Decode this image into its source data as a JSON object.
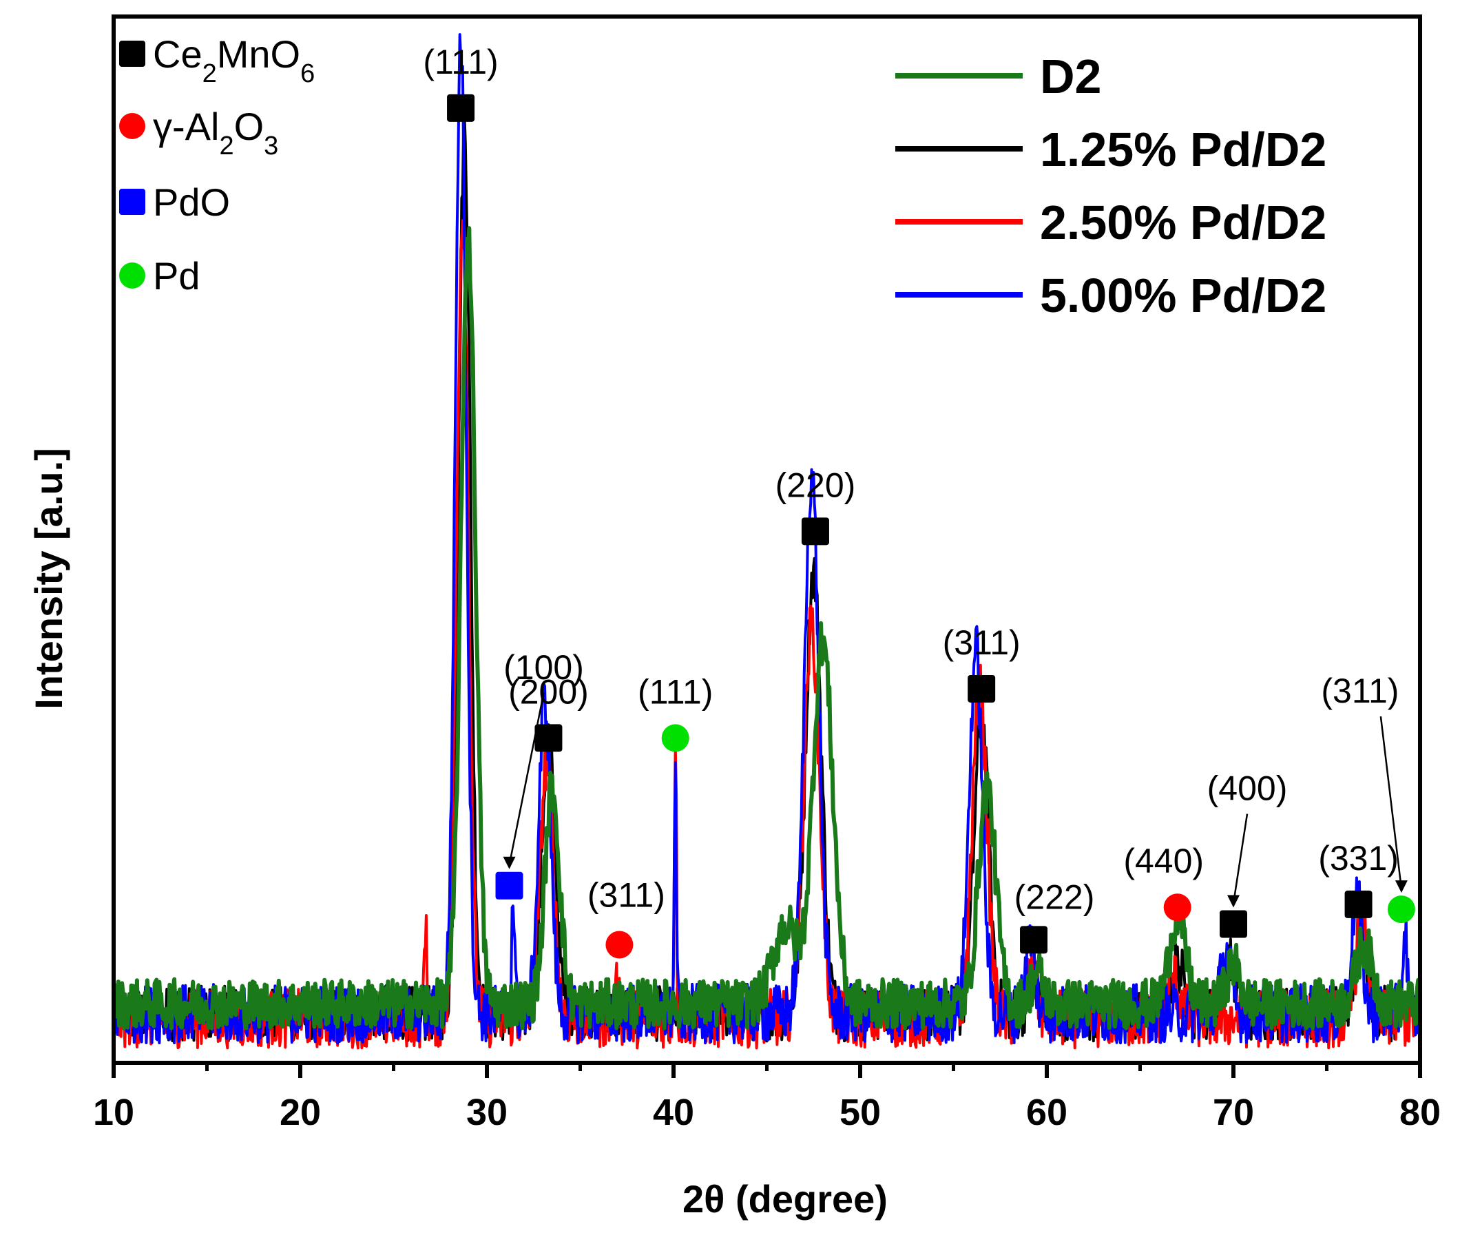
{
  "chart_data": {
    "type": "line",
    "xlabel": "2θ (degree)",
    "ylabel": "Intensity [a.u.]",
    "xlim": [
      10,
      80
    ],
    "ylim": [
      0,
      100
    ],
    "x_ticks": [
      10,
      20,
      30,
      40,
      50,
      60,
      70,
      80
    ],
    "x_minor_step": 5,
    "legend_position": "top-right",
    "series": [
      {
        "name": "D2",
        "color": "#1a7a1a",
        "peaks": [
          {
            "x": 29.0,
            "h": 78,
            "w": 0.55
          },
          {
            "x": 33.5,
            "h": 22,
            "w": 0.55
          },
          {
            "x": 46.0,
            "h": 8,
            "w": 0.9
          },
          {
            "x": 48.0,
            "h": 37,
            "w": 0.75
          },
          {
            "x": 56.8,
            "h": 22,
            "w": 0.65
          },
          {
            "x": 59.5,
            "h": 3,
            "w": 0.5
          },
          {
            "x": 67.0,
            "h": 9,
            "w": 0.6
          },
          {
            "x": 70.0,
            "h": 4,
            "w": 0.5
          },
          {
            "x": 77.0,
            "h": 6,
            "w": 0.6
          }
        ],
        "baseline": 6,
        "noise": 2.5
      },
      {
        "name": "1.25% Pd/D2",
        "color": "#000000",
        "peaks": [
          {
            "x": 28.8,
            "h": 90,
            "w": 0.45
          },
          {
            "x": 33.3,
            "h": 28,
            "w": 0.5
          },
          {
            "x": 47.5,
            "h": 45,
            "w": 0.6
          },
          {
            "x": 56.5,
            "h": 30,
            "w": 0.55
          },
          {
            "x": 59.3,
            "h": 4,
            "w": 0.4
          },
          {
            "x": 67.0,
            "h": 5,
            "w": 0.5
          },
          {
            "x": 69.8,
            "h": 5,
            "w": 0.45
          },
          {
            "x": 76.8,
            "h": 8,
            "w": 0.45
          }
        ],
        "baseline": 5,
        "noise": 2.8
      },
      {
        "name": "2.50% Pd/D2",
        "color": "#ff0000",
        "peaks": [
          {
            "x": 26.7,
            "h": 10,
            "w": 0.1
          },
          {
            "x": 28.7,
            "h": 82,
            "w": 0.45
          },
          {
            "x": 33.2,
            "h": 26,
            "w": 0.5
          },
          {
            "x": 37.0,
            "h": 3,
            "w": 0.15
          },
          {
            "x": 40.1,
            "h": 30,
            "w": 0.08
          },
          {
            "x": 47.4,
            "h": 40,
            "w": 0.6
          },
          {
            "x": 56.4,
            "h": 34,
            "w": 0.55
          },
          {
            "x": 59.2,
            "h": 5,
            "w": 0.4
          },
          {
            "x": 66.8,
            "h": 4,
            "w": 0.5
          },
          {
            "x": 76.9,
            "h": 10,
            "w": 0.45
          }
        ],
        "baseline": 4.5,
        "noise": 3.0
      },
      {
        "name": "5.00% Pd/D2",
        "color": "#0000ff",
        "peaks": [
          {
            "x": 28.6,
            "h": 99,
            "w": 0.42
          },
          {
            "x": 31.4,
            "h": 12,
            "w": 0.12
          },
          {
            "x": 33.1,
            "h": 32,
            "w": 0.45
          },
          {
            "x": 40.1,
            "h": 25,
            "w": 0.08
          },
          {
            "x": 47.4,
            "h": 55,
            "w": 0.55
          },
          {
            "x": 56.2,
            "h": 37,
            "w": 0.5
          },
          {
            "x": 59.1,
            "h": 8,
            "w": 0.35
          },
          {
            "x": 69.6,
            "h": 6,
            "w": 0.4
          },
          {
            "x": 76.6,
            "h": 12,
            "w": 0.4
          },
          {
            "x": 79.2,
            "h": 8,
            "w": 0.2
          }
        ],
        "baseline": 5,
        "noise": 3.0
      }
    ],
    "annotations": [
      {
        "label": "(111)",
        "marker": "black-square",
        "x": 28.6,
        "y": 97
      },
      {
        "label": "(100)",
        "marker": "blue-square",
        "x": 31.2,
        "y": 18,
        "arrow": true
      },
      {
        "label": "(200)",
        "marker": "black-square",
        "x": 33.3,
        "y": 33
      },
      {
        "label": "(311)",
        "marker": "red-circle",
        "x": 37.1,
        "y": 12
      },
      {
        "label": "(111)",
        "marker": "green-circle",
        "x": 40.1,
        "y": 33
      },
      {
        "label": "(220)",
        "marker": "black-square",
        "x": 47.6,
        "y": 54
      },
      {
        "label": "(311)",
        "marker": "black-square",
        "x": 56.5,
        "y": 38
      },
      {
        "label": "(222)",
        "marker": "black-square",
        "x": 59.3,
        "y": 12.5
      },
      {
        "label": "(440)",
        "marker": "red-circle",
        "x": 67.0,
        "y": 15.8
      },
      {
        "label": "(400)",
        "marker": "black-square",
        "x": 70.0,
        "y": 14.1,
        "arrow": true
      },
      {
        "label": "(331)",
        "marker": "black-square",
        "x": 76.7,
        "y": 16.1
      },
      {
        "label": "(311)",
        "marker": "green-circle",
        "x": 79.0,
        "y": 15.6,
        "arrow": true
      }
    ],
    "phase_legend": [
      {
        "marker": "black-square",
        "label_html": "Ce<tspan baseline-shift='sub' font-size='38'>2</tspan>MnO<tspan baseline-shift='sub' font-size='38'>6</tspan>",
        "text": "Ce2MnO6"
      },
      {
        "marker": "red-circle",
        "label_html": "γ-Al<tspan baseline-shift='sub' font-size='38'>2</tspan>O<tspan baseline-shift='sub' font-size='38'>3</tspan>",
        "text": "γ-Al2O3"
      },
      {
        "marker": "blue-square",
        "text": "PdO"
      },
      {
        "marker": "green-circle",
        "text": "Pd"
      }
    ],
    "colors": {
      "black": "#000000",
      "red": "#ff0000",
      "blue": "#0000ff",
      "green": "#00e000",
      "d2": "#1a7a1a"
    }
  }
}
